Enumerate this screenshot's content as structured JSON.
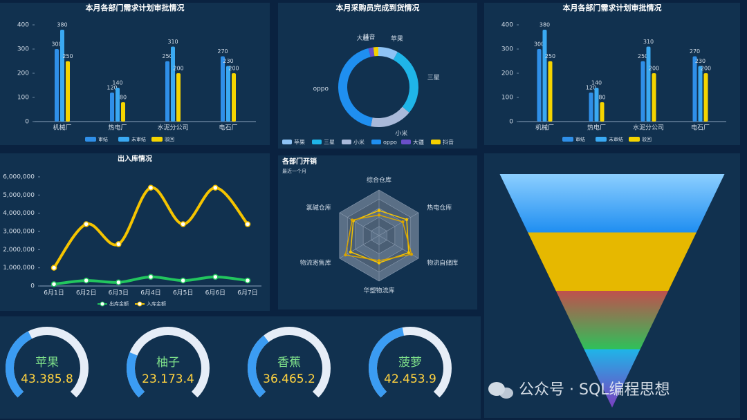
{
  "chart_data": [
    {
      "type": "bar",
      "title": "本月各部门需求计划审批情况",
      "categories": [
        "机械厂",
        "热电厂",
        "水泥分公司",
        "电石厂"
      ],
      "series": [
        {
          "name": "审结",
          "color": "#2f8fe8",
          "values": [
            300,
            120,
            250,
            270
          ]
        },
        {
          "name": "未审结",
          "color": "#3aa9f2",
          "values": [
            380,
            140,
            310,
            230
          ]
        },
        {
          "name": "驳回",
          "color": "#f5d400",
          "values": [
            250,
            80,
            200,
            200
          ]
        }
      ],
      "ylim": [
        0,
        400
      ],
      "yticks": [
        0,
        100,
        200,
        300,
        400
      ]
    },
    {
      "type": "pie",
      "title": "本月采购员完成到货情况",
      "categories": [
        "苹果",
        "三星",
        "小米",
        "oppo",
        "大疆",
        "抖音"
      ],
      "values": [
        8,
        28,
        17,
        43,
        2,
        2
      ],
      "colors": [
        "#8ec3f5",
        "#1fb5e8",
        "#a9b9d9",
        "#1f8ff0",
        "#6a4fc9",
        "#f5d000"
      ]
    },
    {
      "type": "bar",
      "title": "本月各部门需求计划审批情况",
      "categories": [
        "机械厂",
        "热电厂",
        "水泥分公司",
        "电石厂"
      ],
      "series": [
        {
          "name": "审结",
          "color": "#2f8fe8",
          "values": [
            300,
            120,
            250,
            270
          ]
        },
        {
          "name": "未审结",
          "color": "#3aa9f2",
          "values": [
            380,
            140,
            310,
            230
          ]
        },
        {
          "name": "驳回",
          "color": "#f5d400",
          "values": [
            250,
            80,
            200,
            200
          ]
        }
      ],
      "ylim": [
        0,
        400
      ],
      "yticks": [
        0,
        100,
        200,
        300,
        400
      ]
    },
    {
      "type": "line",
      "title": "出入库情况",
      "x": [
        "6月1日",
        "6月2日",
        "6月3日",
        "6月4日",
        "6月5日",
        "6月6日",
        "6月7日"
      ],
      "series": [
        {
          "name": "出库金额",
          "color": "#22c55e",
          "values": [
            100000,
            300000,
            200000,
            500000,
            300000,
            500000,
            300000
          ]
        },
        {
          "name": "入库金额",
          "color": "#f5c400",
          "values": [
            1000000,
            3400000,
            2300000,
            5400000,
            3400000,
            5400000,
            3400000
          ]
        }
      ],
      "ylim": [
        0,
        6000000
      ],
      "yticks": [
        0,
        {
          "value": 1000000,
          "label": "1,000,000"
        },
        {
          "value": 2000000,
          "label": "2,000,000"
        },
        {
          "value": 3000000,
          "label": "3,000,000"
        },
        {
          "value": 4000000,
          "label": "4,000,000"
        },
        {
          "value": 5000000,
          "label": "5,000,000"
        },
        {
          "value": 6000000,
          "label": "6,000,000"
        }
      ]
    },
    {
      "type": "radar",
      "title": "各部门开销",
      "subtitle": "最近一个月",
      "categories": [
        "综合仓库",
        "热电仓库",
        "物流自储库",
        "华塑物流库",
        "物流寄售库",
        "氯碱仓库"
      ],
      "rlim": [
        0,
        100
      ],
      "series": [
        {
          "color": "#f5c400",
          "values": [
            55,
            70,
            75,
            60,
            72,
            65
          ]
        },
        {
          "color": "#d9a400",
          "values": [
            45,
            60,
            82,
            55,
            85,
            68
          ]
        }
      ]
    },
    {
      "type": "gauge",
      "range": [
        0,
        100
      ],
      "items": [
        {
          "name": "苹果",
          "label": "43.385.8",
          "value": 40
        },
        {
          "name": "柚子",
          "label": "23.173.4",
          "value": 25
        },
        {
          "name": "香蕉",
          "label": "36.465.2",
          "value": 36
        },
        {
          "name": "菠萝",
          "label": "42.453.9",
          "value": 46
        }
      ],
      "color": "#3b9cf3",
      "track_color": "#e6edf7"
    },
    {
      "type": "funnel",
      "values": [
        100,
        75,
        50,
        25
      ],
      "colors": [
        [
          "#8ccfff",
          "#1f8ef1"
        ],
        [
          "#e6b800",
          "#e6b800"
        ],
        [
          "#c0504d",
          "#2fc05a"
        ],
        [
          "#1fb5e8",
          "#7b3fc0"
        ]
      ]
    }
  ],
  "watermark": "公众号 · SQL编程思想"
}
